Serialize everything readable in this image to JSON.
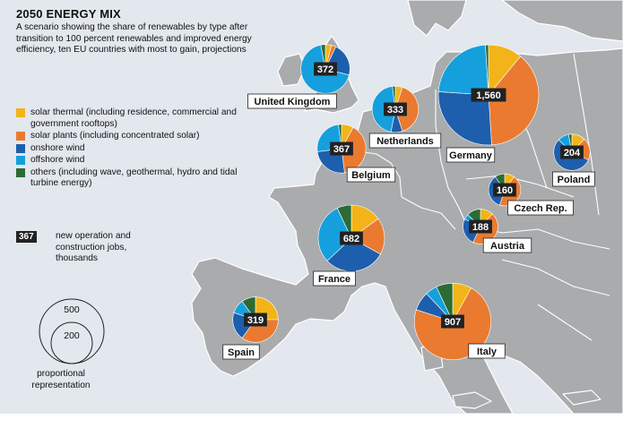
{
  "title": "2050 ENERGY MIX",
  "subtitle": "A scenario showing the share of renewables by type after transition to 100 percent renewables and improved energy efficiency, ten EU countries with most to gain, projections",
  "colors": {
    "solar_thermal": "#f2b418",
    "solar_plants": "#ea7a30",
    "onshore": "#1d5fad",
    "offshore": "#15a0dd",
    "others": "#2c6a36",
    "land": "#a9abad",
    "sea": "#e3e7ee",
    "border": "#ffffff"
  },
  "legend": [
    {
      "key": "solar_thermal",
      "label": "solar thermal (including residence, commercial and government rooftops)"
    },
    {
      "key": "solar_plants",
      "label": "solar plants (including concentrated solar)"
    },
    {
      "key": "onshore",
      "label": "onshore wind"
    },
    {
      "key": "offshore",
      "label": "offshore wind"
    },
    {
      "key": "others",
      "label": "others (including wave, geothermal, hydro and tidal turbine energy)"
    }
  ],
  "jobs_key": {
    "badge": "367",
    "text": "new operation and construction jobs, thousands"
  },
  "prop_scale": {
    "large": "500",
    "small": "200",
    "label": "proportional representation"
  },
  "countries": [
    {
      "name": "United Kingdom",
      "jobs": "372",
      "shares": [
        0.04,
        0.03,
        0.22,
        0.68,
        0.03
      ]
    },
    {
      "name": "Netherlands",
      "jobs": "333",
      "shares": [
        0.05,
        0.4,
        0.08,
        0.45,
        0.02
      ]
    },
    {
      "name": "Germany",
      "jobs": "1,560",
      "shares": [
        0.11,
        0.38,
        0.27,
        0.23,
        0.01
      ]
    },
    {
      "name": "Belgium",
      "jobs": "367",
      "shares": [
        0.08,
        0.4,
        0.25,
        0.25,
        0.02
      ]
    },
    {
      "name": "Poland",
      "jobs": "204",
      "shares": [
        0.12,
        0.2,
        0.55,
        0.1,
        0.03
      ]
    },
    {
      "name": "Czech Rep.",
      "jobs": "160",
      "shares": [
        0.1,
        0.45,
        0.35,
        0.0,
        0.1
      ]
    },
    {
      "name": "Austria",
      "jobs": "188",
      "shares": [
        0.12,
        0.45,
        0.25,
        0.05,
        0.13
      ]
    },
    {
      "name": "France",
      "jobs": "682",
      "shares": [
        0.15,
        0.18,
        0.3,
        0.3,
        0.07
      ]
    },
    {
      "name": "Spain",
      "jobs": "319",
      "shares": [
        0.25,
        0.35,
        0.2,
        0.1,
        0.1
      ]
    },
    {
      "name": "Italy",
      "jobs": "907",
      "shares": [
        0.08,
        0.72,
        0.08,
        0.05,
        0.07
      ]
    }
  ]
}
